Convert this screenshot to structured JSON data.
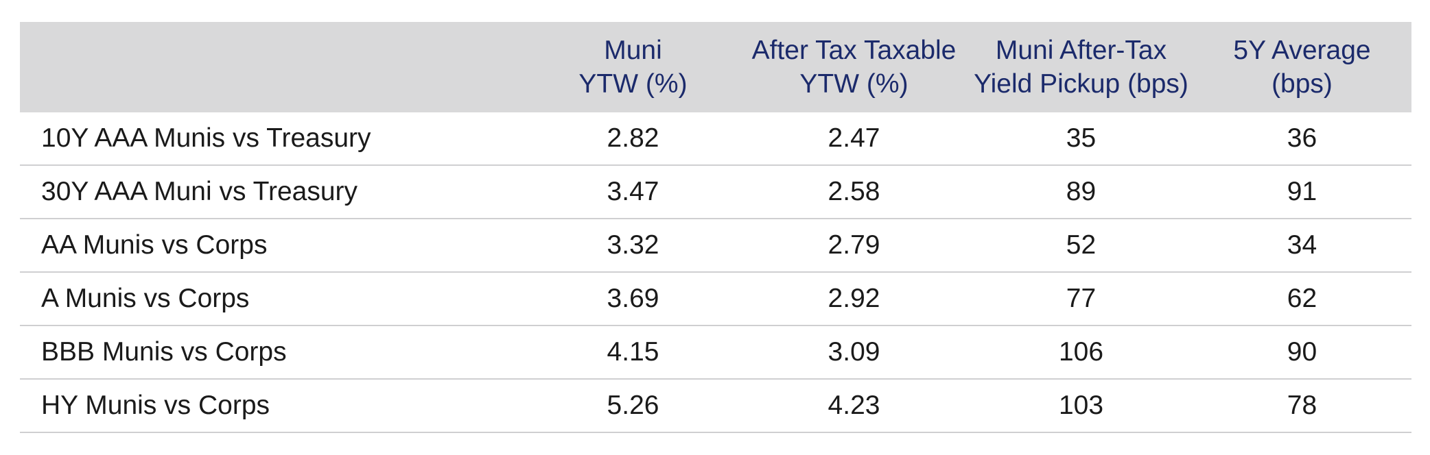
{
  "chart_data": {
    "type": "table",
    "columns": [
      {
        "key": "label",
        "lines": [
          "",
          ""
        ]
      },
      {
        "key": "muni_ytw",
        "lines": [
          "Muni",
          "YTW (%)"
        ]
      },
      {
        "key": "after_tax",
        "lines": [
          "After Tax Taxable",
          "YTW (%)"
        ]
      },
      {
        "key": "pickup",
        "lines": [
          "Muni After-Tax",
          "Yield Pickup (bps)"
        ]
      },
      {
        "key": "avg5y",
        "lines": [
          "5Y Average",
          "(bps)"
        ]
      }
    ],
    "rows": [
      {
        "label": "10Y AAA Munis vs Treasury",
        "muni_ytw": "2.82",
        "after_tax": "2.47",
        "pickup": "35",
        "avg5y": "36"
      },
      {
        "label": "30Y AAA Muni vs Treasury",
        "muni_ytw": "3.47",
        "after_tax": "2.58",
        "pickup": "89",
        "avg5y": "91"
      },
      {
        "label": "AA Munis vs Corps",
        "muni_ytw": "3.32",
        "after_tax": "2.79",
        "pickup": "52",
        "avg5y": "34"
      },
      {
        "label": "A Munis vs Corps",
        "muni_ytw": "3.69",
        "after_tax": "2.92",
        "pickup": "77",
        "avg5y": "62"
      },
      {
        "label": "BBB Munis vs Corps",
        "muni_ytw": "4.15",
        "after_tax": "3.09",
        "pickup": "106",
        "avg5y": "90"
      },
      {
        "label": "HY Munis vs Corps",
        "muni_ytw": "5.26",
        "after_tax": "4.23",
        "pickup": "103",
        "avg5y": "78"
      }
    ]
  },
  "colors": {
    "header_bg": "#d9d9da",
    "header_text": "#1b2a6b",
    "body_text": "#1a1a1a",
    "row_rule": "#cfcfd1"
  }
}
